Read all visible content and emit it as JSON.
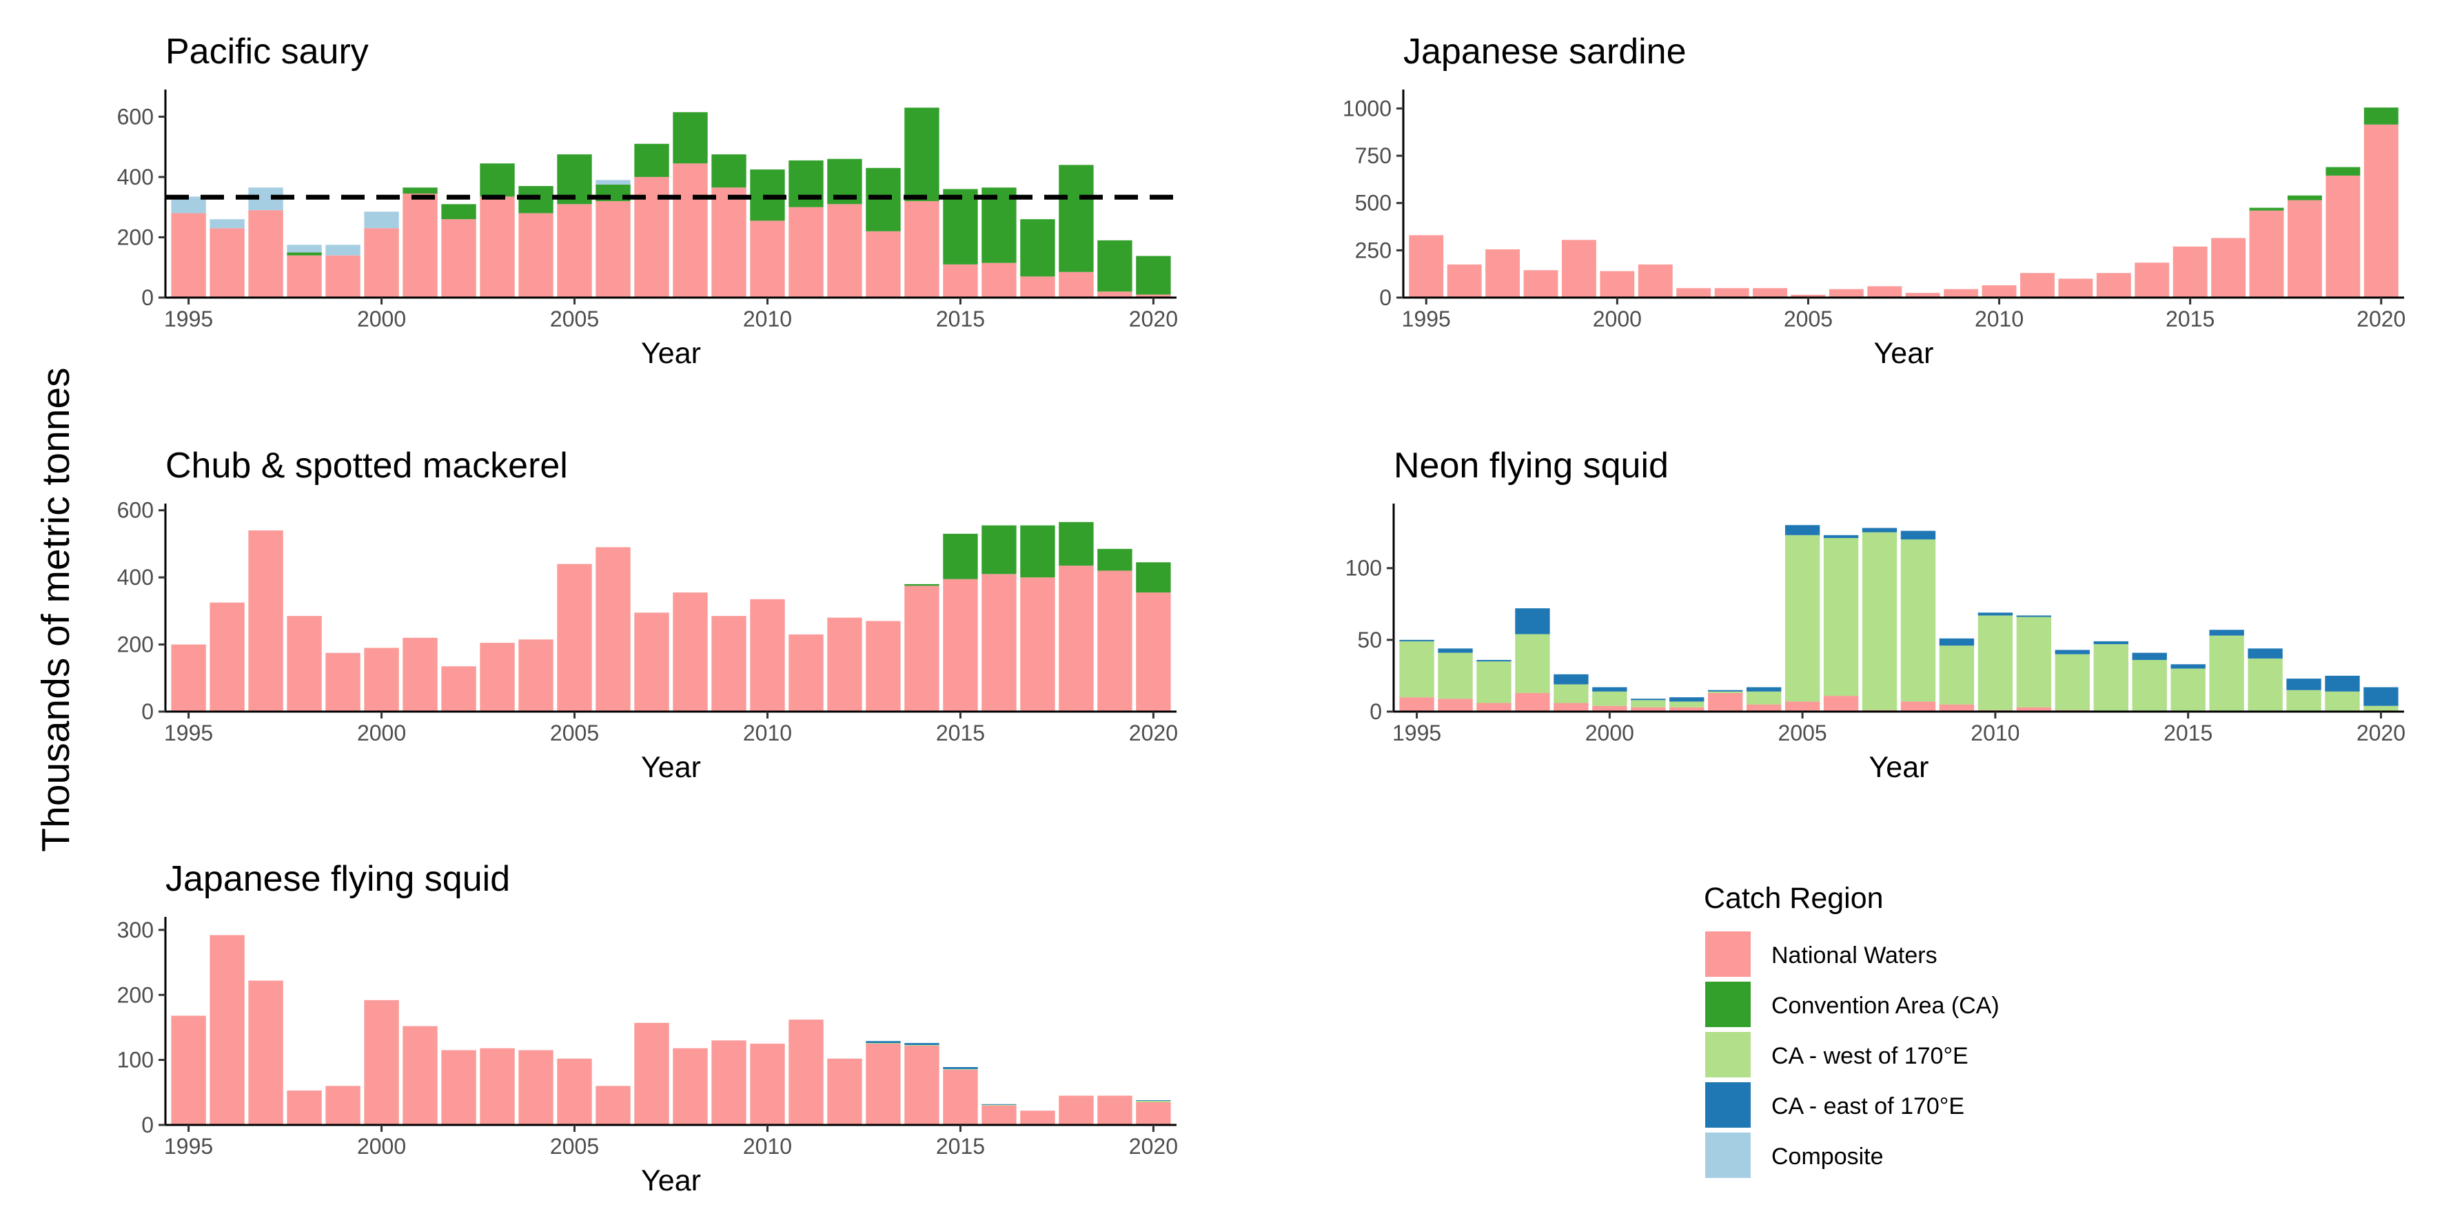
{
  "figure": {
    "ylabel": "Thousands of metric tonnes"
  },
  "legend": {
    "title": "Catch Region",
    "items": [
      {
        "key": "national",
        "label": "National Waters",
        "color": "#fb9a99"
      },
      {
        "key": "ca",
        "label": "Convention Area (CA)",
        "color": "#33a02c"
      },
      {
        "key": "ca_west",
        "label": "CA - west of 170°E",
        "color": "#b2df8a"
      },
      {
        "key": "ca_east",
        "label": "CA - east of 170°E",
        "color": "#1f78b4"
      },
      {
        "key": "composite",
        "label": "Composite",
        "color": "#a6cee3"
      }
    ]
  },
  "chart_data": [
    {
      "type": "bar",
      "stacked": true,
      "title": "Pacific saury",
      "xlabel": "Year",
      "ylabel": "",
      "x": [
        1995,
        1996,
        1997,
        1998,
        1999,
        2000,
        2001,
        2002,
        2003,
        2004,
        2005,
        2006,
        2007,
        2008,
        2009,
        2010,
        2011,
        2012,
        2013,
        2014,
        2015,
        2016,
        2017,
        2018,
        2019,
        2020
      ],
      "xticks": [
        1995,
        2000,
        2005,
        2010,
        2015,
        2020
      ],
      "ylim": [
        0,
        690
      ],
      "yticks": [
        0,
        200,
        400,
        600
      ],
      "reference_line": {
        "y": 333,
        "style": "dashed"
      },
      "series": [
        {
          "name": "National Waters",
          "key": "national",
          "values": [
            280,
            230,
            290,
            140,
            140,
            230,
            345,
            260,
            335,
            280,
            310,
            320,
            400,
            445,
            365,
            255,
            300,
            310,
            220,
            320,
            110,
            115,
            70,
            85,
            20,
            10
          ]
        },
        {
          "name": "Convention Area (CA)",
          "key": "ca",
          "values": [
            0,
            0,
            0,
            10,
            0,
            0,
            20,
            50,
            110,
            90,
            165,
            55,
            110,
            170,
            110,
            170,
            155,
            150,
            210,
            310,
            250,
            250,
            190,
            355,
            170,
            128
          ]
        },
        {
          "name": "Composite",
          "key": "composite",
          "values": [
            55,
            30,
            75,
            25,
            35,
            55,
            0,
            0,
            0,
            0,
            0,
            15,
            0,
            0,
            0,
            0,
            0,
            0,
            0,
            0,
            0,
            0,
            0,
            0,
            0,
            0
          ]
        }
      ]
    },
    {
      "type": "bar",
      "stacked": true,
      "title": "Japanese sardine",
      "xlabel": "Year",
      "ylabel": "",
      "x": [
        1995,
        1996,
        1997,
        1998,
        1999,
        2000,
        2001,
        2002,
        2003,
        2004,
        2005,
        2006,
        2007,
        2008,
        2009,
        2010,
        2011,
        2012,
        2013,
        2014,
        2015,
        2016,
        2017,
        2018,
        2019,
        2020
      ],
      "xticks": [
        1995,
        2000,
        2005,
        2010,
        2015,
        2020
      ],
      "ylim": [
        0,
        1100
      ],
      "yticks": [
        0,
        250,
        500,
        750,
        1000
      ],
      "series": [
        {
          "name": "National Waters",
          "key": "national",
          "values": [
            330,
            175,
            255,
            145,
            305,
            140,
            175,
            50,
            50,
            50,
            15,
            45,
            60,
            25,
            45,
            65,
            130,
            100,
            130,
            185,
            270,
            315,
            460,
            515,
            645,
            915
          ]
        },
        {
          "name": "Convention Area (CA)",
          "key": "ca",
          "values": [
            0,
            0,
            0,
            0,
            0,
            0,
            0,
            0,
            0,
            0,
            0,
            0,
            0,
            0,
            0,
            0,
            0,
            0,
            0,
            0,
            0,
            0,
            15,
            25,
            45,
            90
          ]
        }
      ]
    },
    {
      "type": "bar",
      "stacked": true,
      "title": "Chub & spotted mackerel",
      "xlabel": "Year",
      "ylabel": "",
      "x": [
        1995,
        1996,
        1997,
        1998,
        1999,
        2000,
        2001,
        2002,
        2003,
        2004,
        2005,
        2006,
        2007,
        2008,
        2009,
        2010,
        2011,
        2012,
        2013,
        2014,
        2015,
        2016,
        2017,
        2018,
        2019,
        2020
      ],
      "xticks": [
        1995,
        2000,
        2005,
        2010,
        2015,
        2020
      ],
      "ylim": [
        0,
        620
      ],
      "yticks": [
        0,
        200,
        400,
        600
      ],
      "series": [
        {
          "name": "National Waters",
          "key": "national",
          "values": [
            200,
            325,
            540,
            285,
            175,
            190,
            220,
            135,
            205,
            215,
            440,
            490,
            295,
            355,
            285,
            335,
            230,
            280,
            270,
            375,
            395,
            410,
            400,
            435,
            420,
            355
          ]
        },
        {
          "name": "Convention Area (CA)",
          "key": "ca",
          "values": [
            0,
            0,
            0,
            0,
            0,
            0,
            0,
            0,
            0,
            0,
            0,
            0,
            0,
            0,
            0,
            0,
            0,
            0,
            0,
            5,
            135,
            145,
            155,
            130,
            65,
            90
          ]
        }
      ]
    },
    {
      "type": "bar",
      "stacked": true,
      "title": "Neon flying squid",
      "xlabel": "Year",
      "ylabel": "",
      "x": [
        1995,
        1996,
        1997,
        1998,
        1999,
        2000,
        2001,
        2002,
        2003,
        2004,
        2005,
        2006,
        2007,
        2008,
        2009,
        2010,
        2011,
        2012,
        2013,
        2014,
        2015,
        2016,
        2017,
        2018,
        2019,
        2020
      ],
      "xticks": [
        1995,
        2000,
        2005,
        2010,
        2015,
        2020
      ],
      "ylim": [
        0,
        145
      ],
      "yticks": [
        0,
        50,
        100
      ],
      "series": [
        {
          "name": "National Waters",
          "key": "national",
          "values": [
            10,
            9,
            6,
            13,
            6,
            4,
            3,
            3,
            13,
            5,
            7,
            11,
            1,
            7,
            5,
            1,
            3,
            1,
            0,
            0,
            0,
            0,
            0,
            0,
            0,
            0
          ]
        },
        {
          "name": "CA - west of 170°E",
          "key": "ca_west",
          "values": [
            39,
            32,
            29,
            41,
            13,
            10,
            5,
            4,
            1,
            9,
            116,
            110,
            124,
            113,
            41,
            66,
            63,
            39,
            47,
            36,
            30,
            53,
            37,
            15,
            14,
            4
          ]
        },
        {
          "name": "CA - east of 170°E",
          "key": "ca_east",
          "values": [
            1,
            3,
            1,
            18,
            7,
            3,
            1,
            3,
            1,
            3,
            7,
            2,
            3,
            6,
            5,
            2,
            1,
            3,
            2,
            5,
            3,
            4,
            7,
            8,
            11,
            13
          ]
        }
      ]
    },
    {
      "type": "bar",
      "stacked": true,
      "title": "Japanese flying squid",
      "xlabel": "Year",
      "ylabel": "",
      "x": [
        1995,
        1996,
        1997,
        1998,
        1999,
        2000,
        2001,
        2002,
        2003,
        2004,
        2005,
        2006,
        2007,
        2008,
        2009,
        2010,
        2011,
        2012,
        2013,
        2014,
        2015,
        2016,
        2017,
        2018,
        2019,
        2020
      ],
      "xticks": [
        1995,
        2000,
        2005,
        2010,
        2015,
        2020
      ],
      "ylim": [
        0,
        320
      ],
      "yticks": [
        0,
        100,
        200,
        300
      ],
      "series": [
        {
          "name": "National Waters",
          "key": "national",
          "values": [
            168,
            292,
            222,
            53,
            60,
            192,
            152,
            115,
            118,
            115,
            102,
            60,
            157,
            118,
            130,
            125,
            162,
            102,
            125,
            122,
            85,
            30,
            22,
            45,
            45,
            35
          ]
        },
        {
          "name": "CA - west of 170°E",
          "key": "ca_west",
          "values": [
            0,
            0,
            0,
            0,
            0,
            0,
            0,
            0,
            0,
            0,
            0,
            0,
            0,
            0,
            0,
            0,
            0,
            0,
            1,
            1,
            1,
            1,
            0,
            0,
            0,
            2
          ]
        },
        {
          "name": "CA - east of 170°E",
          "key": "ca_east",
          "values": [
            0,
            0,
            0,
            0,
            0,
            0,
            0,
            0,
            0,
            0,
            0,
            0,
            0,
            0,
            0,
            0,
            0,
            0,
            3,
            3,
            3,
            1,
            0,
            0,
            0,
            1
          ]
        }
      ]
    }
  ]
}
